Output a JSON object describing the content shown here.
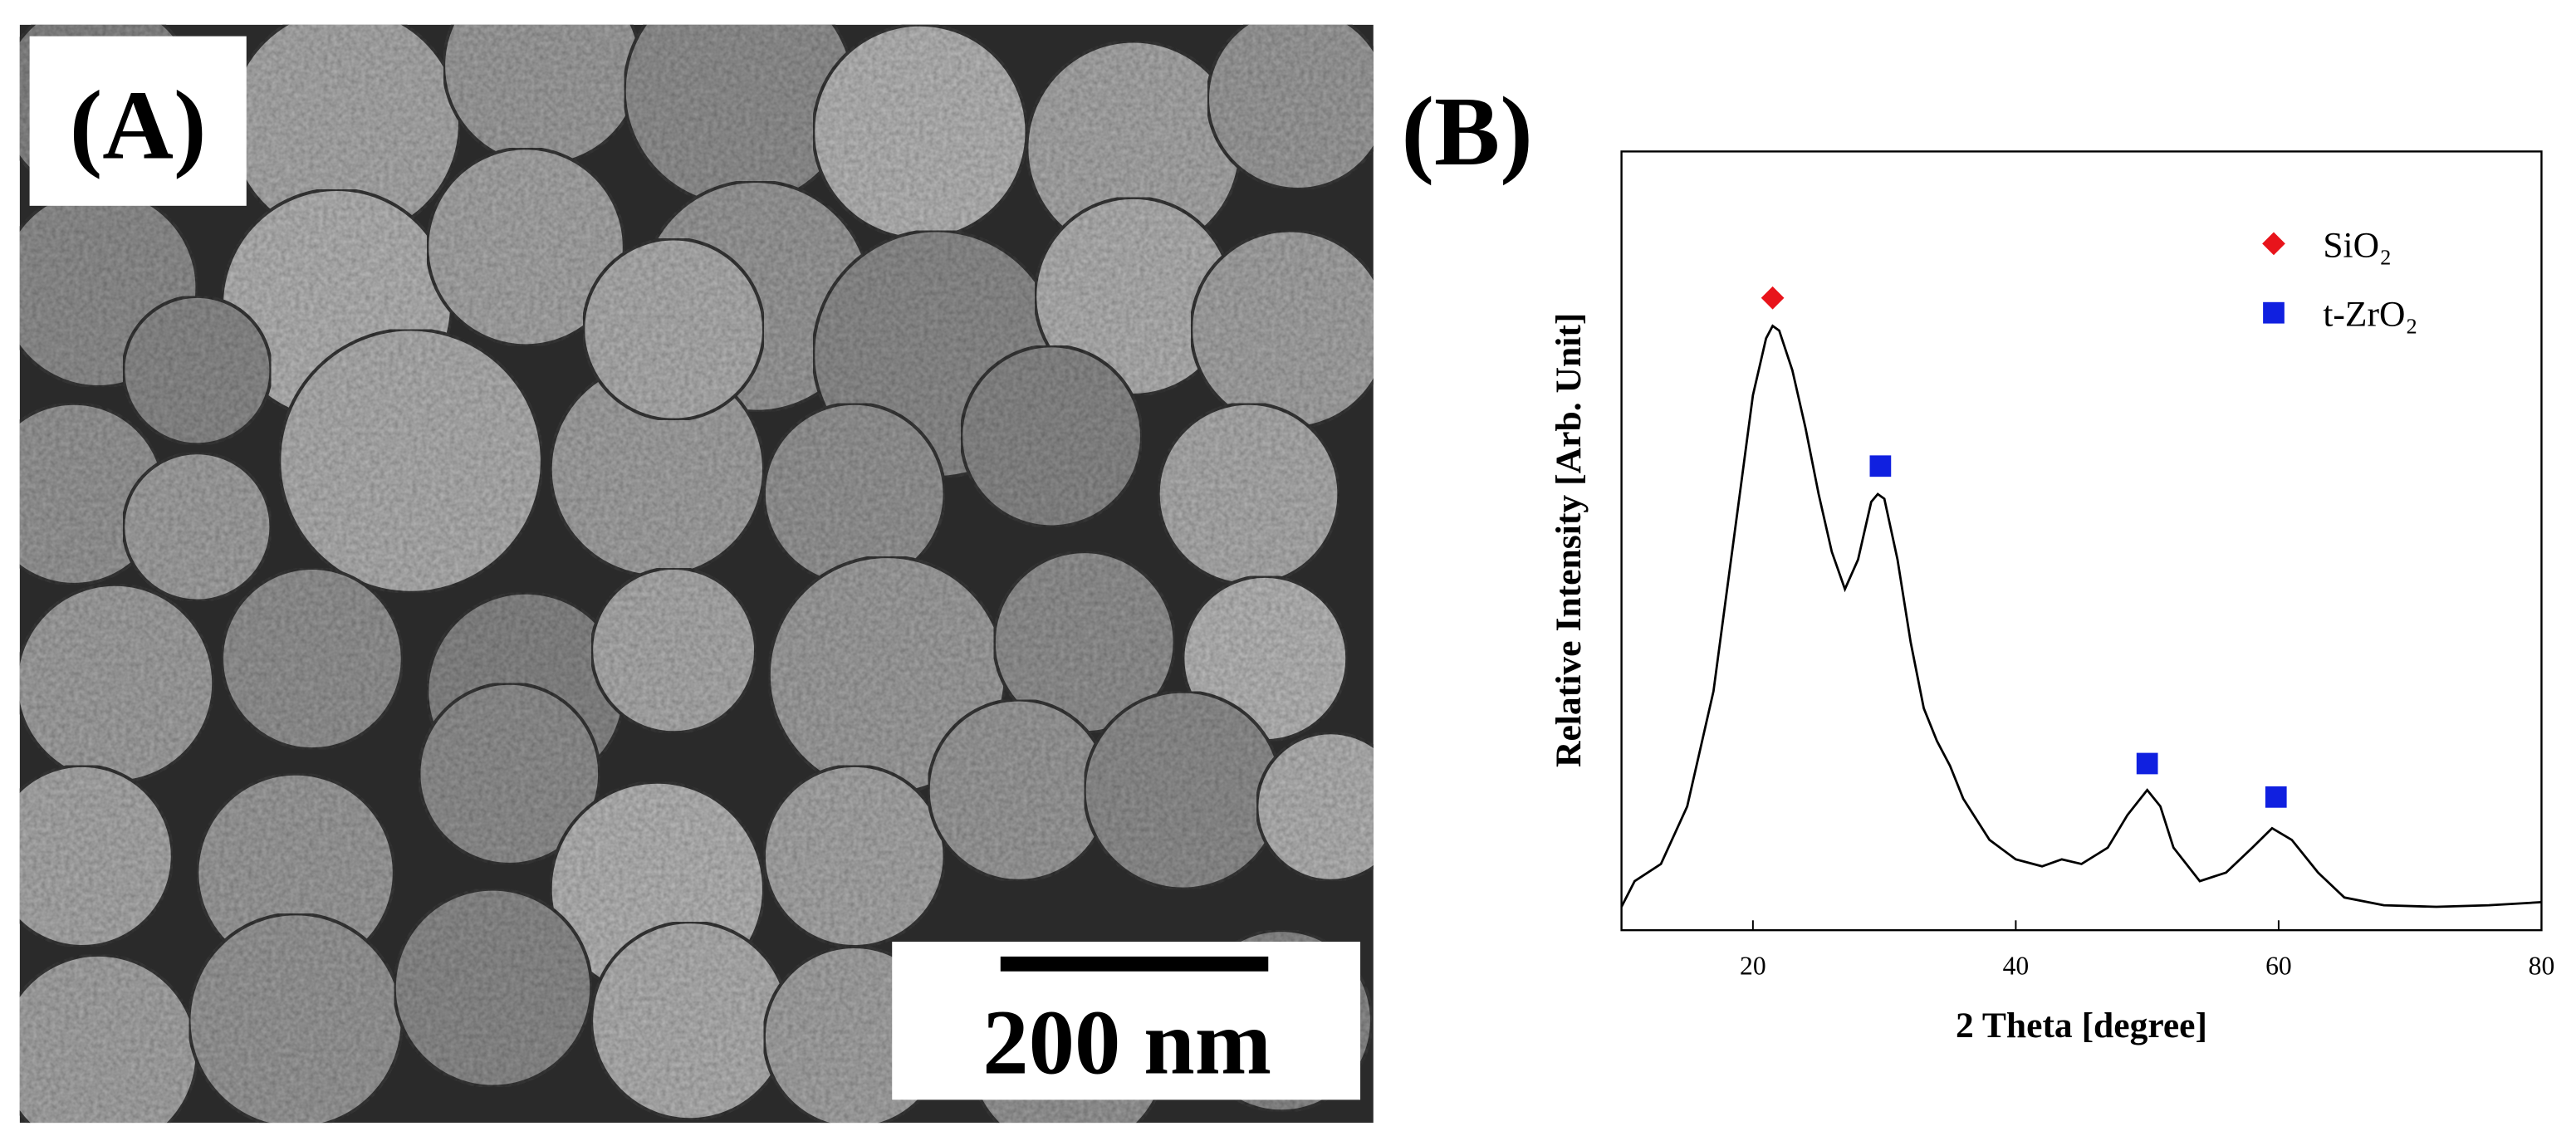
{
  "panel_a": {
    "label": "(A)",
    "scale_bar": "200 nm"
  },
  "chart_data": {
    "type": "line",
    "panel_label": "(B)",
    "xlabel": "2 Theta [degree]",
    "ylabel": "Relative Intensity [Arb. Unit]",
    "xlim": [
      10,
      80
    ],
    "xticks": [
      20,
      40,
      60,
      80
    ],
    "ylim": [
      0,
      100
    ],
    "color": "#000000",
    "x": [
      10,
      11,
      13,
      15,
      17,
      19,
      20,
      21,
      21.5,
      22,
      23,
      24,
      25,
      26,
      27,
      28,
      29,
      29.5,
      30,
      31,
      32,
      33,
      34,
      35,
      36,
      38,
      40,
      42,
      43.5,
      45,
      47,
      48.5,
      50,
      51,
      52,
      54,
      56,
      58,
      59.5,
      61,
      63,
      65,
      68,
      72,
      76,
      80
    ],
    "values": [
      3,
      6.3,
      8.5,
      15.9,
      30.7,
      56,
      68.7,
      76,
      77.6,
      77,
      71.9,
      64.5,
      56,
      48.6,
      43.8,
      47.6,
      55,
      56,
      55.4,
      47.6,
      37,
      28.5,
      24.3,
      21.1,
      16.9,
      11.6,
      9.1,
      8.2,
      9.1,
      8.5,
      10.6,
      14.8,
      18,
      15.9,
      10.6,
      6.3,
      7.4,
      10.6,
      13.1,
      11.6,
      7.4,
      4.2,
      3.2,
      3,
      3.2,
      3.6
    ],
    "series": [
      {
        "name": "SiO₂",
        "color": "#e8141b",
        "marker": "diamond",
        "x": [
          21.5
        ],
        "values": [
          81.2
        ]
      },
      {
        "name": "t-ZrO₂",
        "color": "#1020e0",
        "marker": "square",
        "x": [
          29.7,
          50,
          59.8
        ],
        "values": [
          59.6,
          21.4,
          17.1
        ]
      }
    ]
  }
}
